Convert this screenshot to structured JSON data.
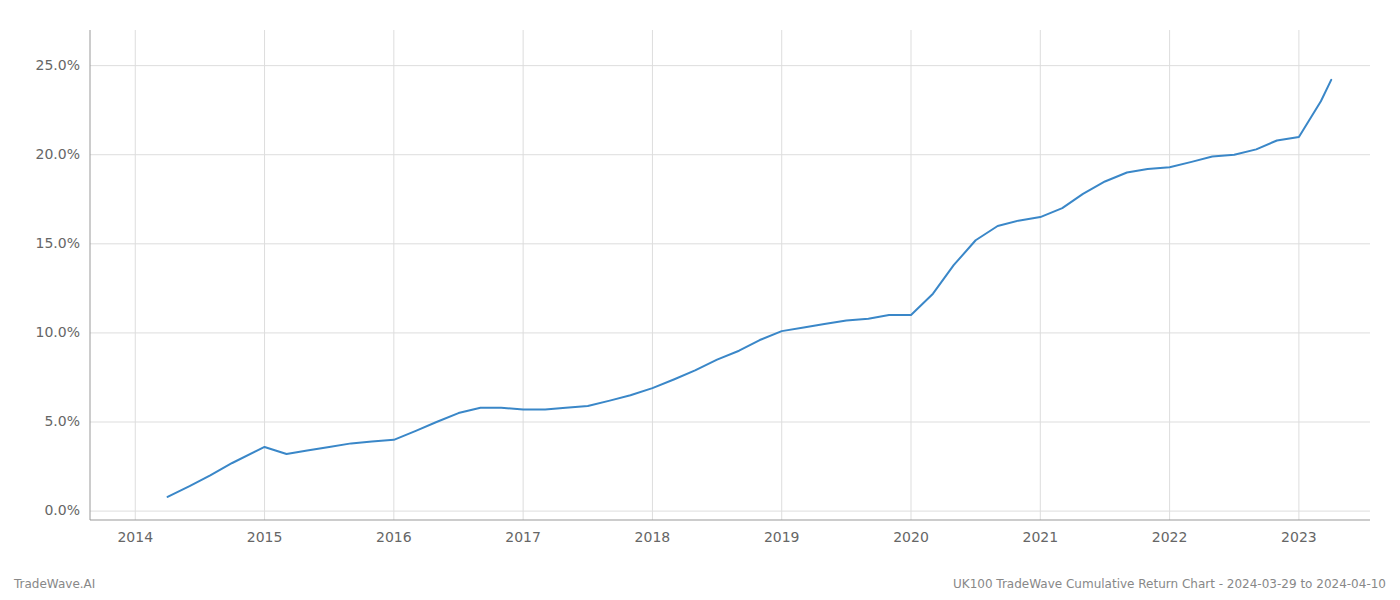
{
  "chart_data": {
    "type": "line",
    "x": [
      2014.25,
      2014.42,
      2014.58,
      2014.75,
      2015.0,
      2015.17,
      2015.33,
      2015.5,
      2015.67,
      2015.83,
      2016.0,
      2016.17,
      2016.33,
      2016.5,
      2016.67,
      2016.83,
      2017.0,
      2017.17,
      2017.33,
      2017.5,
      2017.67,
      2017.83,
      2018.0,
      2018.17,
      2018.33,
      2018.5,
      2018.67,
      2018.83,
      2019.0,
      2019.17,
      2019.33,
      2019.5,
      2019.67,
      2019.83,
      2020.0,
      2020.17,
      2020.33,
      2020.5,
      2020.67,
      2020.83,
      2021.0,
      2021.17,
      2021.33,
      2021.5,
      2021.67,
      2021.83,
      2022.0,
      2022.17,
      2022.33,
      2022.5,
      2022.67,
      2022.83,
      2023.0,
      2023.17,
      2023.25
    ],
    "values": [
      0.008,
      0.014,
      0.02,
      0.027,
      0.036,
      0.032,
      0.034,
      0.036,
      0.038,
      0.039,
      0.04,
      0.045,
      0.05,
      0.055,
      0.058,
      0.058,
      0.057,
      0.057,
      0.058,
      0.059,
      0.062,
      0.065,
      0.069,
      0.074,
      0.079,
      0.085,
      0.09,
      0.096,
      0.101,
      0.103,
      0.105,
      0.107,
      0.108,
      0.11,
      0.11,
      0.122,
      0.138,
      0.152,
      0.16,
      0.163,
      0.165,
      0.17,
      0.178,
      0.185,
      0.19,
      0.192,
      0.193,
      0.196,
      0.199,
      0.2,
      0.203,
      0.208,
      0.21,
      0.23,
      0.242
    ],
    "color": "#3a87c8",
    "xlim": [
      2013.65,
      2023.55
    ],
    "ylim": [
      -0.005,
      0.27
    ],
    "xticks": [
      2014,
      2015,
      2016,
      2017,
      2018,
      2019,
      2020,
      2021,
      2022,
      2023
    ],
    "yticks": [
      {
        "value": 0.0,
        "label": "0.0%"
      },
      {
        "value": 0.05,
        "label": "5.0%"
      },
      {
        "value": 0.1,
        "label": "10.0%"
      },
      {
        "value": 0.15,
        "label": "15.0%"
      },
      {
        "value": 0.2,
        "label": "20.0%"
      },
      {
        "value": 0.25,
        "label": "25.0%"
      }
    ],
    "grid": true,
    "annotations": [
      "TradeWave.AI",
      "UK100 TradeWave Cumulative Return Chart - 2024-03-29 to 2024-04-10"
    ]
  }
}
